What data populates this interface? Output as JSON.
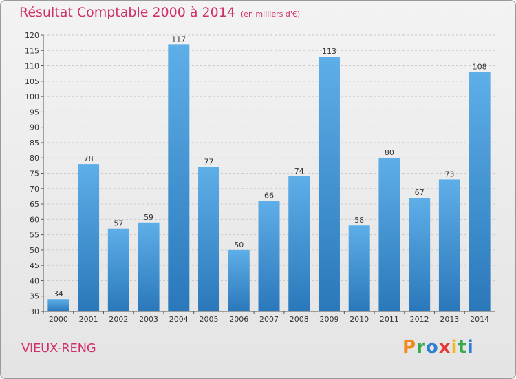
{
  "chart_data": {
    "type": "bar",
    "title": "Résultat Comptable 2000 à 2014",
    "unit_note": "(en milliers d'€)",
    "categories": [
      "2000",
      "2001",
      "2002",
      "2003",
      "2004",
      "2005",
      "2006",
      "2007",
      "2008",
      "2009",
      "2010",
      "2011",
      "2012",
      "2013",
      "2014"
    ],
    "values": [
      34,
      78,
      57,
      59,
      117,
      77,
      50,
      66,
      74,
      113,
      58,
      80,
      67,
      73,
      108
    ],
    "ylim": [
      30,
      120
    ],
    "yticks": [
      30,
      35,
      40,
      45,
      50,
      55,
      60,
      65,
      70,
      75,
      80,
      85,
      90,
      95,
      100,
      105,
      110,
      115,
      120
    ],
    "grid": true,
    "xlabel": "",
    "ylabel": ""
  },
  "colors": {
    "bar_top": "#5eaee8",
    "bar_bottom": "#2a78ba",
    "title": "#d0306a",
    "grid": "#c9c9c9"
  },
  "commune": "VIEUX-RENG",
  "logo": {
    "letters": [
      "P",
      "r",
      "o",
      "x",
      "i",
      "t",
      "i"
    ]
  }
}
